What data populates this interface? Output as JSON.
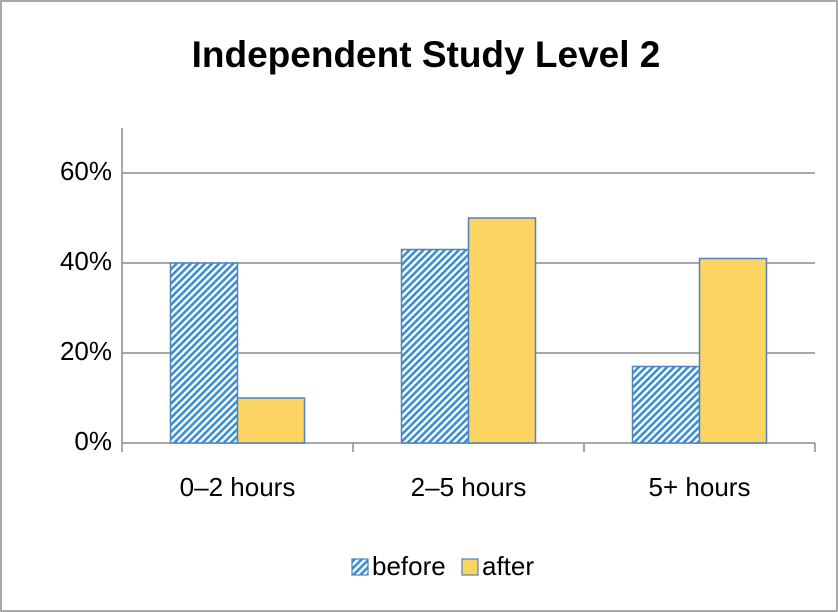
{
  "chart_data": {
    "type": "bar",
    "title": "Independent Study Level 2",
    "categories": [
      "0–2 hours",
      "2–5 hours",
      "5+ hours"
    ],
    "series": [
      {
        "name": "before",
        "color": "#a9d4ec",
        "values": [
          40,
          43,
          17
        ]
      },
      {
        "name": "after",
        "color": "#fcd462",
        "values": [
          10,
          50,
          41
        ]
      }
    ],
    "ylim": [
      0,
      70
    ],
    "yticks": [
      {
        "value": 0,
        "label": "0%"
      },
      {
        "value": 20,
        "label": "20%"
      },
      {
        "value": 40,
        "label": "40%"
      },
      {
        "value": 60,
        "label": "60%"
      }
    ],
    "grid": true,
    "legend": "bottom"
  }
}
